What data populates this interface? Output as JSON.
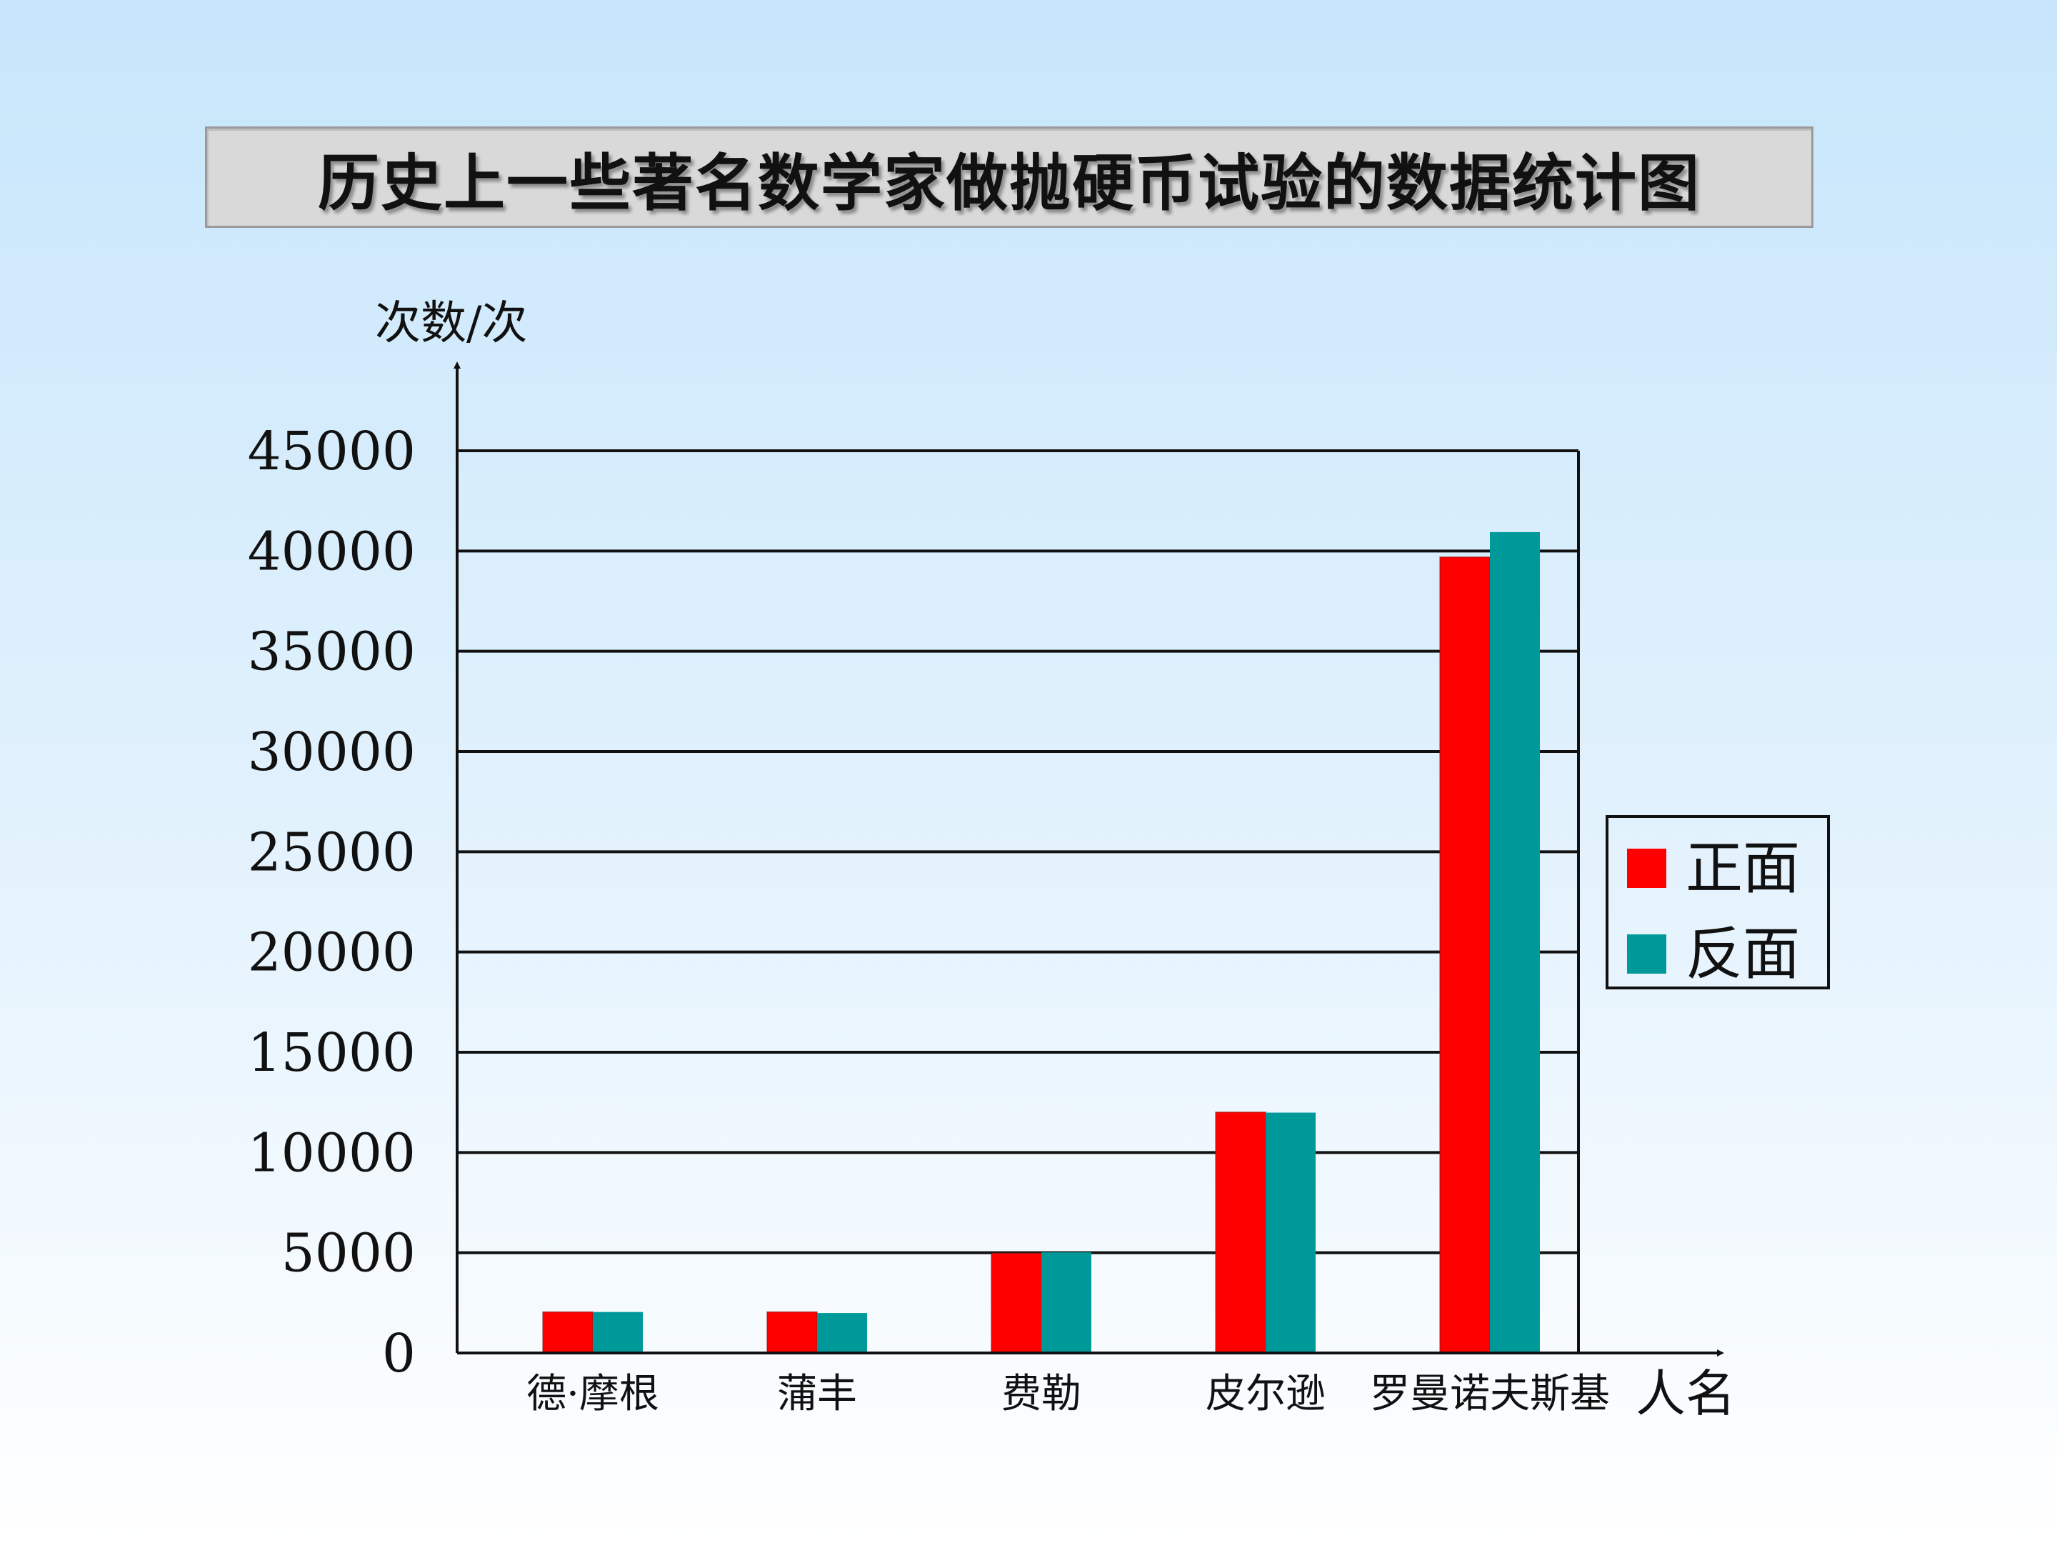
{
  "title": "历史上一些著名数学家做抛硬币试验的数据统计图",
  "colors": {
    "heads": "#ff0000",
    "tails": "#009999",
    "gridline": "#111111",
    "background_top": "#c7e6fb",
    "background_bottom": "#ffffff"
  },
  "chart_data": {
    "type": "bar",
    "title": "历史上一些著名数学家做抛硬币试验的数据统计图",
    "xlabel": "人名",
    "ylabel": "次数/次",
    "categories": [
      "德·摩根",
      "蒲丰",
      "费勒",
      "皮尔逊",
      "罗曼诺夫斯基"
    ],
    "series": [
      {
        "name": "正面",
        "values": [
          2048,
          2048,
          4979,
          12012,
          39699
        ]
      },
      {
        "name": "反面",
        "values": [
          2044,
          1992,
          5021,
          11988,
          40941
        ]
      }
    ],
    "ylim": [
      0,
      45000
    ],
    "yticks": [
      "0",
      "5000",
      "10000",
      "15000",
      "20000",
      "25000",
      "30000",
      "35000",
      "40000",
      "45000"
    ],
    "grid": true,
    "legend_position": "right"
  }
}
